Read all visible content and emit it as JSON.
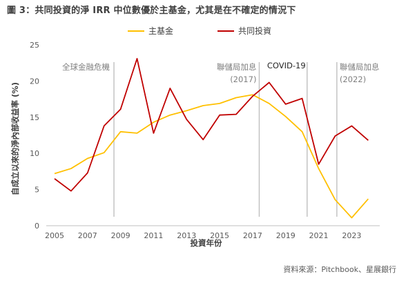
{
  "figure": {
    "title": "圖 3：共同投資的淨 IRR 中位數優於主基金，尤其是在不確定的情況下",
    "source": "資料來源：Pitchbook、星展銀行"
  },
  "chart_data": {
    "type": "line",
    "title": "圖 3：共同投資的淨 IRR 中位數優於主基金，尤其是在不確定的情況下",
    "xlabel": "投資年份",
    "ylabel": "自成立以來的淨內部收益率 (%)",
    "xlim": [
      2004.5,
      2024.7
    ],
    "ylim": [
      0,
      25
    ],
    "x_ticks": [
      2005,
      2007,
      2009,
      2011,
      2013,
      2015,
      2017,
      2019,
      2021,
      2023
    ],
    "y_ticks": [
      0,
      5,
      10,
      15,
      20,
      25
    ],
    "grid": false,
    "legend_position": "top-center",
    "x": [
      2005,
      2006,
      2007,
      2008,
      2009,
      2010,
      2011,
      2012,
      2013,
      2014,
      2015,
      2016,
      2017,
      2018,
      2019,
      2020,
      2021,
      2022,
      2023,
      2024
    ],
    "series": [
      {
        "name": "主基金",
        "color": "#FFC000",
        "values": [
          7.2,
          7.9,
          9.3,
          10.1,
          13.0,
          12.8,
          14.3,
          15.3,
          15.9,
          16.6,
          16.9,
          17.7,
          18.1,
          16.9,
          15.1,
          13.0,
          7.9,
          3.6,
          1.1,
          3.7
        ]
      },
      {
        "name": "共同投資",
        "color": "#C00000",
        "values": [
          6.5,
          4.8,
          7.3,
          13.8,
          16.1,
          23.1,
          12.8,
          19.0,
          14.7,
          11.9,
          15.3,
          15.4,
          17.9,
          19.8,
          16.8,
          17.6,
          8.5,
          12.4,
          13.8,
          11.8
        ]
      }
    ],
    "annotations": [
      {
        "x": 2008.6,
        "label": "全球金融危機",
        "sublabel": ""
      },
      {
        "x": 2017.4,
        "label": "聯儲局加息",
        "sublabel": "(2017)"
      },
      {
        "x": 2020.3,
        "label": "COVID-19",
        "sublabel": ""
      },
      {
        "x": 2022.1,
        "label": "聯儲局加息",
        "sublabel": "(2022)"
      }
    ]
  }
}
